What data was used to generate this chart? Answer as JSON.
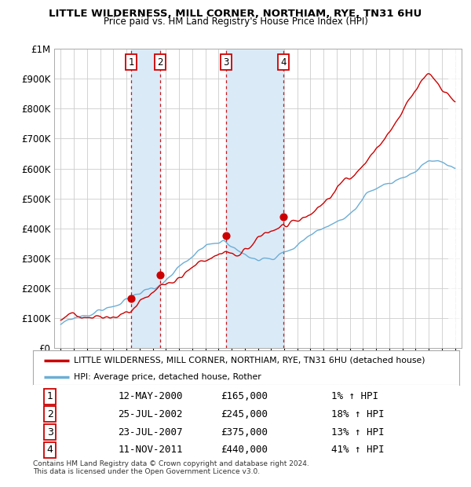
{
  "title": "LITTLE WILDERNESS, MILL CORNER, NORTHIAM, RYE, TN31 6HU",
  "subtitle": "Price paid vs. HM Land Registry's House Price Index (HPI)",
  "hpi_color": "#6baed6",
  "sale_color": "#cc0000",
  "grid_color": "#cccccc",
  "bg_color": "#ffffff",
  "sale_points": [
    {
      "year": 2000.37,
      "price": 165000,
      "label": "1"
    },
    {
      "year": 2002.56,
      "price": 245000,
      "label": "2"
    },
    {
      "year": 2007.56,
      "price": 375000,
      "label": "3"
    },
    {
      "year": 2011.92,
      "price": 440000,
      "label": "4"
    }
  ],
  "shade_color": "#dbeaf7",
  "footnote": "Contains HM Land Registry data © Crown copyright and database right 2024.\nThis data is licensed under the Open Government Licence v3.0.",
  "legend_property": "LITTLE WILDERNESS, MILL CORNER, NORTHIAM, RYE, TN31 6HU (detached house)",
  "legend_hpi": "HPI: Average price, detached house, Rother",
  "table_rows": [
    [
      "1",
      "12-MAY-2000",
      "£165,000",
      "1% ↑ HPI"
    ],
    [
      "2",
      "25-JUL-2002",
      "£245,000",
      "18% ↑ HPI"
    ],
    [
      "3",
      "23-JUL-2007",
      "£375,000",
      "13% ↑ HPI"
    ],
    [
      "4",
      "11-NOV-2011",
      "£440,000",
      "41% ↑ HPI"
    ]
  ],
  "xlim": [
    1994.5,
    2025.5
  ],
  "ylim": [
    0,
    1000000
  ],
  "yticks": [
    0,
    100000,
    200000,
    300000,
    400000,
    500000,
    600000,
    700000,
    800000,
    900000,
    1000000
  ],
  "ytick_labels": [
    "£0",
    "£100K",
    "£200K",
    "£300K",
    "£400K",
    "£500K",
    "£600K",
    "£700K",
    "£800K",
    "£900K",
    "£1M"
  ]
}
